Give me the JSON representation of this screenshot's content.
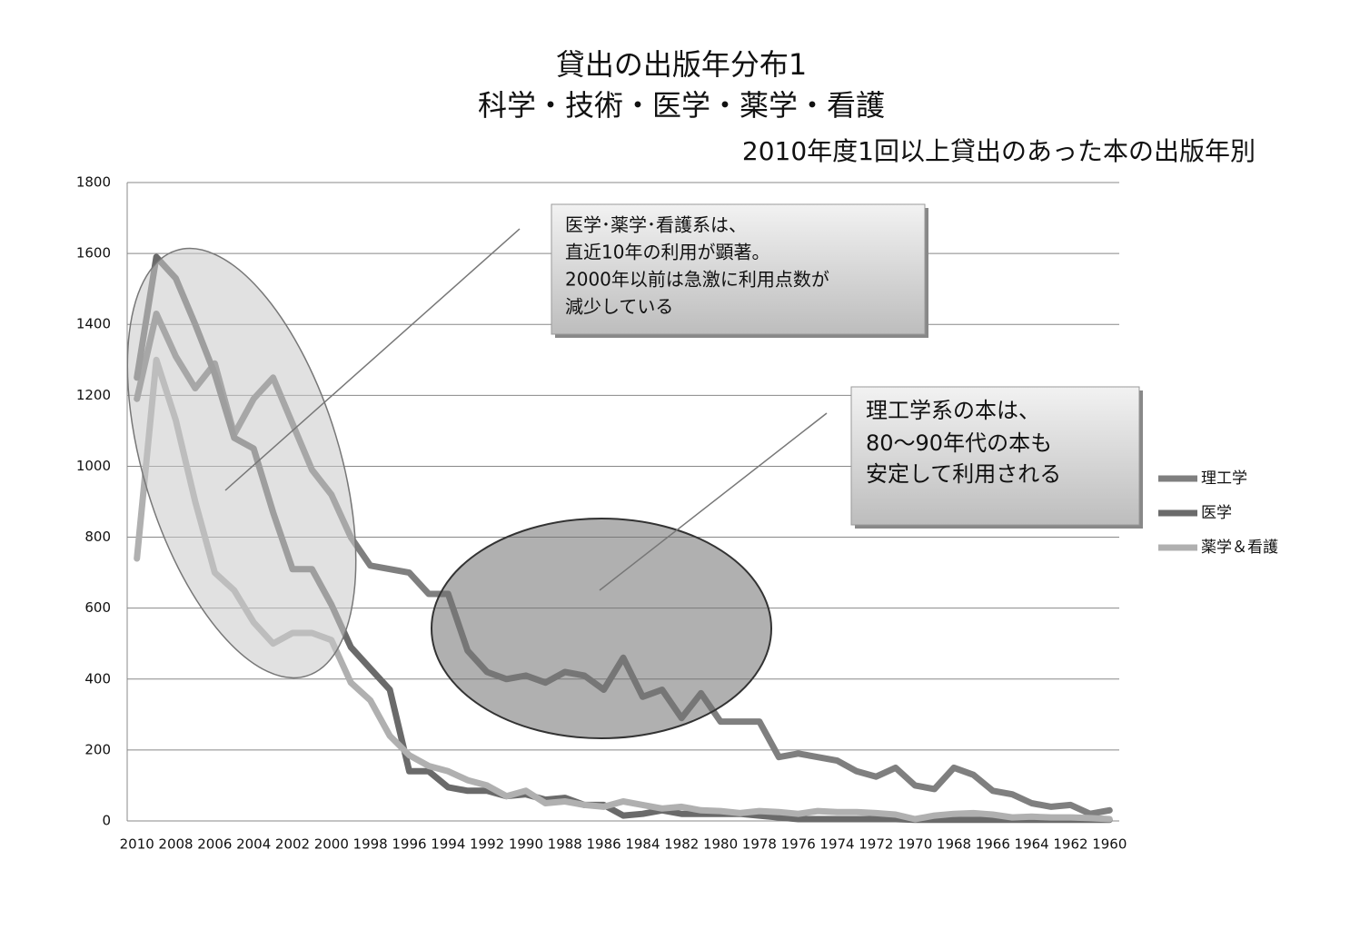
{
  "chart_data": {
    "type": "line",
    "title": [
      "貸出の出版年分布1",
      "科学・技術・医学・薬学・看護"
    ],
    "subtitle": "2010年度1回以上貸出のあった本の出版年別",
    "categories": [
      "2010",
      null,
      "2008",
      null,
      "2006",
      null,
      "2004",
      null,
      "2002",
      null,
      "2000",
      null,
      "1998",
      null,
      "1996",
      null,
      "1994",
      null,
      "1992",
      null,
      "1990",
      null,
      "1988",
      null,
      "1986",
      null,
      "1984",
      null,
      "1982",
      null,
      "1980",
      null,
      "1978",
      null,
      "1976",
      null,
      "1974",
      null,
      "1972",
      null,
      "1970",
      null,
      "1968",
      null,
      "1966",
      null,
      "1964",
      null,
      "1962",
      null,
      "1960"
    ],
    "series": [
      {
        "name": "理工学",
        "color": "#7f7f7f",
        "values": [
          1190,
          1430,
          1310,
          1220,
          1290,
          1090,
          1190,
          1250,
          1120,
          990,
          920,
          800,
          720,
          710,
          700,
          640,
          640,
          480,
          420,
          400,
          410,
          390,
          420,
          410,
          370,
          460,
          350,
          370,
          290,
          360,
          280,
          280,
          280,
          180,
          190,
          180,
          170,
          140,
          125,
          150,
          100,
          90,
          150,
          130,
          85,
          75,
          50,
          40,
          45,
          20,
          30
        ]
      },
      {
        "name": "医学",
        "color": "#6a6a6a",
        "values": [
          1250,
          1590,
          1530,
          1400,
          1260,
          1080,
          1050,
          870,
          710,
          710,
          610,
          490,
          430,
          370,
          140,
          140,
          95,
          85,
          85,
          70,
          75,
          60,
          65,
          45,
          45,
          15,
          20,
          30,
          20,
          20,
          20,
          20,
          15,
          10,
          5,
          5,
          5,
          5,
          5,
          5,
          3,
          3,
          3,
          3,
          3,
          3,
          3,
          3,
          3,
          3,
          3
        ]
      },
      {
        "name": "薬学＆看護",
        "color": "#b0b0b0",
        "values": [
          740,
          1300,
          1130,
          900,
          700,
          650,
          560,
          500,
          530,
          530,
          510,
          390,
          340,
          240,
          185,
          155,
          140,
          115,
          100,
          70,
          85,
          50,
          55,
          45,
          40,
          55,
          45,
          35,
          40,
          30,
          28,
          22,
          28,
          25,
          20,
          28,
          25,
          25,
          22,
          18,
          5,
          15,
          20,
          22,
          18,
          10,
          12,
          10,
          10,
          8,
          5
        ]
      }
    ],
    "ylim": [
      0,
      1800
    ],
    "yticks": [
      0,
      200,
      400,
      600,
      800,
      1000,
      1200,
      1400,
      1600,
      1800
    ],
    "grid": true,
    "legend": "right",
    "annotations": [
      {
        "lines": [
          "医学･薬学･看護系は、",
          "直近10年の利用が顕著。",
          "2000年以前は急激に利用点数が",
          "減少している"
        ]
      },
      {
        "lines": [
          "理工学系の本は、",
          "80〜90年代の本も",
          "安定して利用される"
        ]
      }
    ]
  }
}
